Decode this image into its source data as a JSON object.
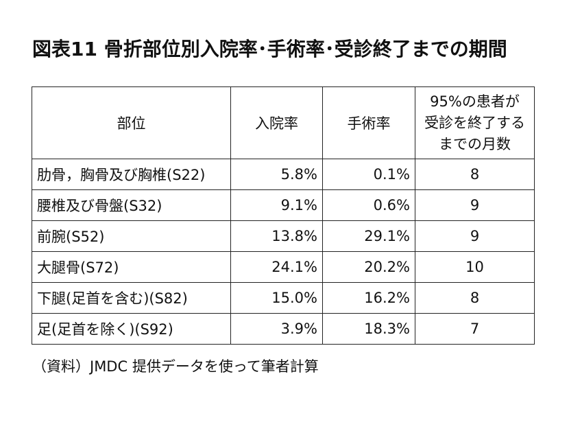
{
  "title": "図表11 骨折部位別入院率･手術率･受診終了までの期間",
  "table": {
    "headers": {
      "site": "部位",
      "hospitalization": "入院率",
      "surgery": "手術率",
      "months_lines": [
        "95%の患者が",
        "受診を終了する",
        "までの月数"
      ]
    },
    "rows": [
      {
        "site": "肋骨，胸骨及び胸椎(S22)",
        "hospitalization": "5.8%",
        "surgery": "0.1%",
        "months": "8"
      },
      {
        "site": "腰椎及び骨盤(S32)",
        "hospitalization": "9.1%",
        "surgery": "0.6%",
        "months": "9"
      },
      {
        "site": "前腕(S52)",
        "hospitalization": "13.8%",
        "surgery": "29.1%",
        "months": "9"
      },
      {
        "site": "大腿骨(S72)",
        "hospitalization": "24.1%",
        "surgery": "20.2%",
        "months": "10"
      },
      {
        "site": "下腿(足首を含む)(S82)",
        "hospitalization": "15.0%",
        "surgery": "16.2%",
        "months": "8"
      },
      {
        "site": "足(足首を除く)(S92)",
        "hospitalization": "3.9%",
        "surgery": "18.3%",
        "months": "7"
      }
    ]
  },
  "source": "（資料）JMDC 提供データを使って筆者計算"
}
